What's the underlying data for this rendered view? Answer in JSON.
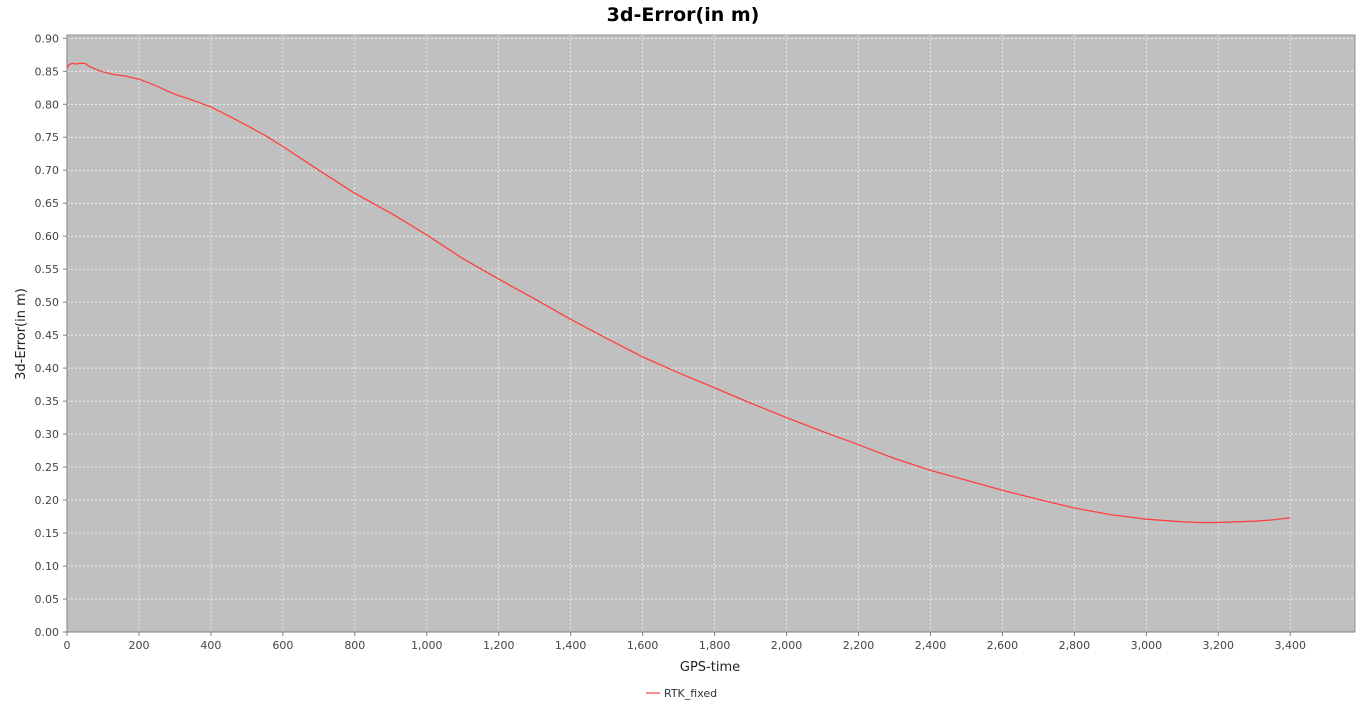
{
  "chart_data": {
    "type": "line",
    "title": "3d-Error(in m)",
    "xlabel": "GPS-time",
    "ylabel": "3d-Error(in m)",
    "xlim": [
      0,
      3580
    ],
    "ylim": [
      0,
      0.905
    ],
    "x_ticks": [
      0,
      200,
      400,
      600,
      800,
      1000,
      1200,
      1400,
      1600,
      1800,
      2000,
      2200,
      2400,
      2600,
      2800,
      3000,
      3200,
      3400
    ],
    "x_tick_labels": [
      "0",
      "200",
      "400",
      "600",
      "800",
      "1,000",
      "1,200",
      "1,400",
      "1,600",
      "1,800",
      "2,000",
      "2,200",
      "2,400",
      "2,600",
      "2,800",
      "3,000",
      "3,200",
      "3,400"
    ],
    "y_ticks": [
      0,
      0.05,
      0.1,
      0.15,
      0.2,
      0.25,
      0.3,
      0.35,
      0.4,
      0.45,
      0.5,
      0.55,
      0.6,
      0.65,
      0.7,
      0.75,
      0.8,
      0.85,
      0.9
    ],
    "y_tick_labels": [
      "0.00",
      "0.05",
      "0.10",
      "0.15",
      "0.20",
      "0.25",
      "0.30",
      "0.35",
      "0.40",
      "0.45",
      "0.50",
      "0.55",
      "0.60",
      "0.65",
      "0.70",
      "0.75",
      "0.80",
      "0.85",
      "0.90"
    ],
    "grid": true,
    "legend_position": "bottom",
    "plot_background": "#c0c0c0",
    "grid_color": "#ffffff",
    "series": [
      {
        "name": "RTK_fixed",
        "color": "#ff4040",
        "x": [
          0,
          5,
          15,
          25,
          35,
          50,
          60,
          80,
          100,
          130,
          160,
          200,
          230,
          260,
          300,
          350,
          400,
          450,
          500,
          550,
          600,
          700,
          800,
          900,
          1000,
          1100,
          1200,
          1300,
          1400,
          1500,
          1600,
          1700,
          1800,
          1900,
          2000,
          2100,
          2200,
          2300,
          2400,
          2500,
          2600,
          2700,
          2800,
          2900,
          3000,
          3100,
          3150,
          3200,
          3250,
          3300,
          3350,
          3400
        ],
        "y": [
          0.855,
          0.86,
          0.862,
          0.861,
          0.862,
          0.862,
          0.858,
          0.853,
          0.849,
          0.845,
          0.843,
          0.838,
          0.832,
          0.825,
          0.815,
          0.806,
          0.796,
          0.782,
          0.768,
          0.753,
          0.736,
          0.7,
          0.665,
          0.635,
          0.602,
          0.566,
          0.535,
          0.505,
          0.474,
          0.445,
          0.417,
          0.393,
          0.37,
          0.347,
          0.325,
          0.304,
          0.284,
          0.263,
          0.245,
          0.23,
          0.215,
          0.201,
          0.188,
          0.178,
          0.171,
          0.167,
          0.166,
          0.166,
          0.167,
          0.168,
          0.17,
          0.173
        ]
      }
    ]
  }
}
